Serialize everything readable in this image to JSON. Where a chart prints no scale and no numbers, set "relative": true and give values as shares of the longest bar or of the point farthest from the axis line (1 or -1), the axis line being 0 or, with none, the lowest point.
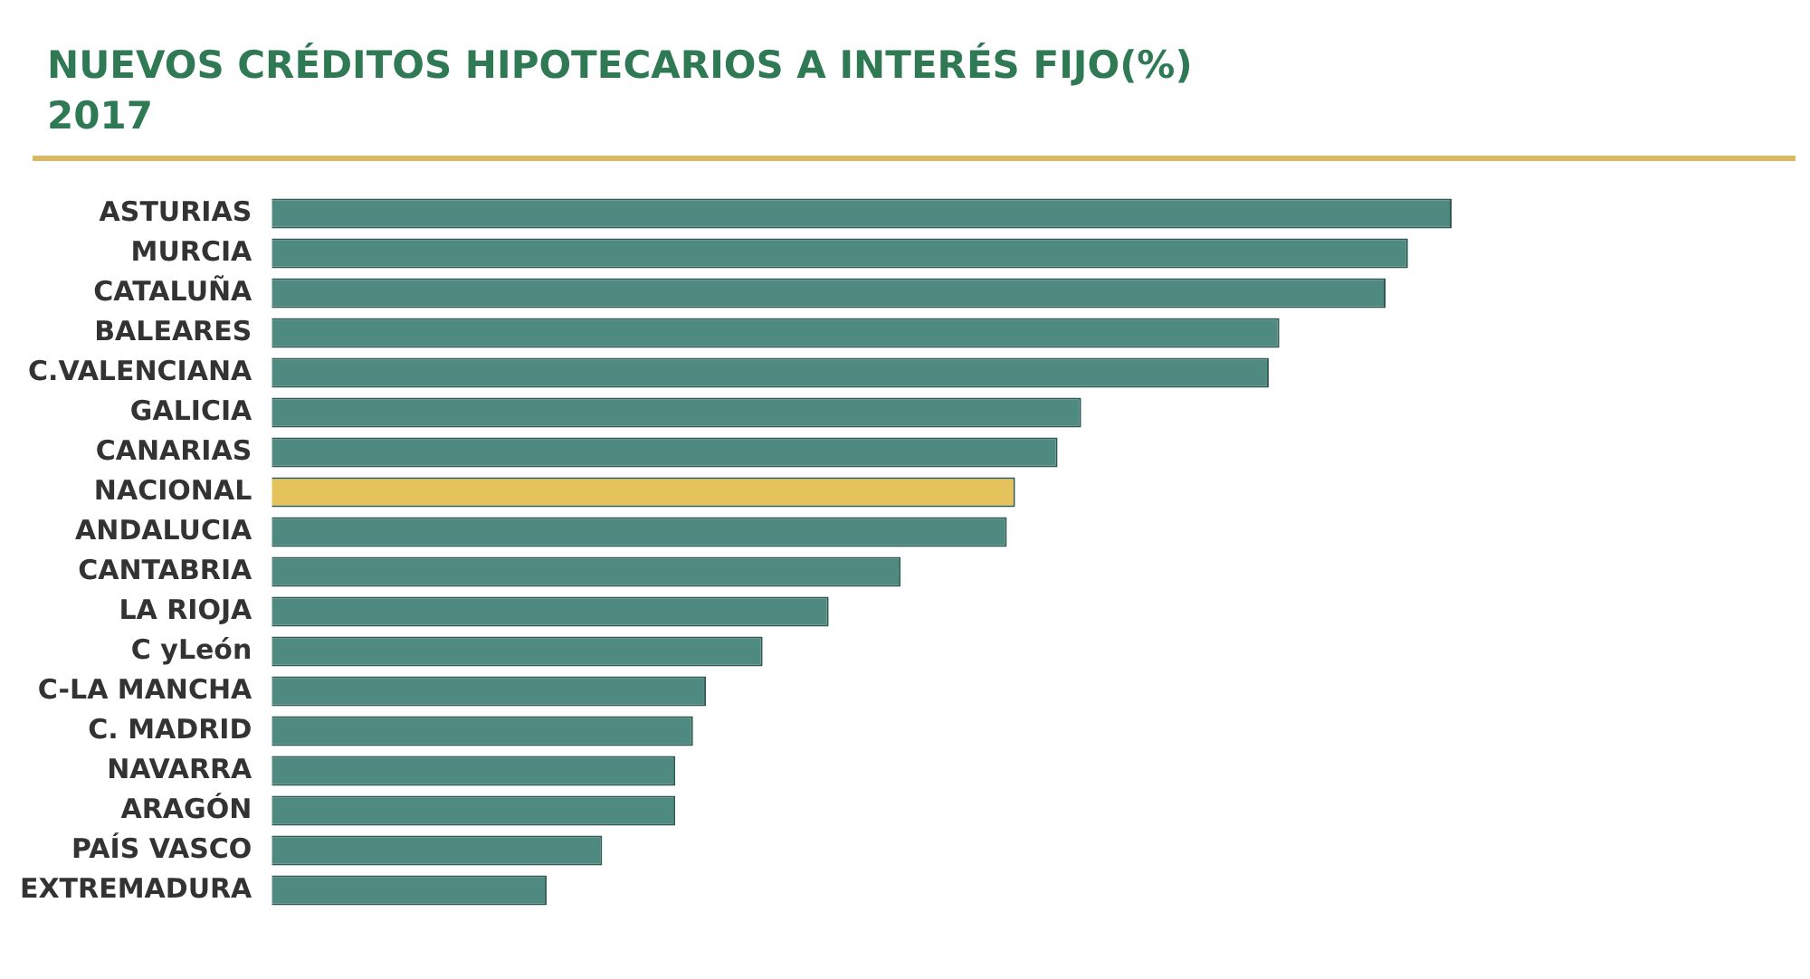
{
  "chart_data": {
    "type": "bar",
    "orientation": "horizontal",
    "relative": true,
    "title": "NUEVOS CRÉDITOS HIPOTECARIOS A INTERÉS FIJO(%)",
    "subtitle": "2017",
    "categories": [
      "ASTURIAS",
      "MURCIA",
      "CATALUÑA",
      "BALEARES",
      "C.VALENCIANA",
      "GALICIA",
      "CANARIAS",
      "NACIONAL",
      "ANDALUCIA",
      "CANTABRIA",
      "LA RIOJA",
      "C yLeón",
      "C-LA MANCHA",
      "C. MADRID",
      "NAVARRA",
      "ARAGÓN",
      "PAÍS VASCO",
      "EXTREMADURA"
    ],
    "values": [
      1,
      0.963,
      0.944,
      0.854,
      0.845,
      0.686,
      0.666,
      0.63,
      0.623,
      0.533,
      0.472,
      0.416,
      0.368,
      0.357,
      0.342,
      0.342,
      0.28,
      0.233
    ],
    "colors": [
      "#4f8a80",
      "#4f8a80",
      "#4f8a80",
      "#4f8a80",
      "#4f8a80",
      "#4f8a80",
      "#4f8a80",
      "#e6c25c",
      "#4f8a80",
      "#4f8a80",
      "#4f8a80",
      "#4f8a80",
      "#4f8a80",
      "#4f8a80",
      "#4f8a80",
      "#4f8a80",
      "#4f8a80",
      "#4f8a80"
    ],
    "legend": false
  }
}
